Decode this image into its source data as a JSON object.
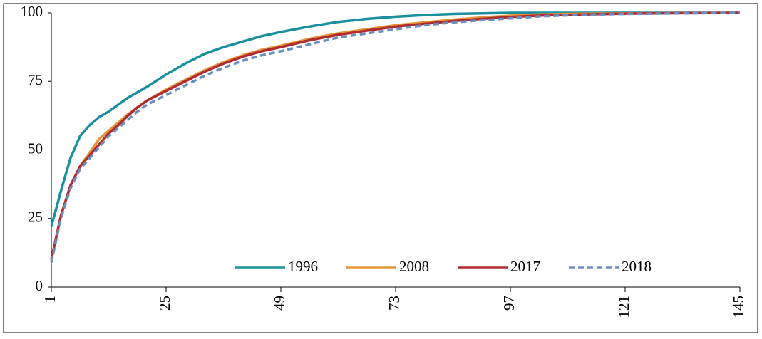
{
  "chart_data": {
    "type": "line",
    "x": [
      1,
      3,
      5,
      7,
      9,
      11,
      13,
      15,
      17,
      19,
      21,
      25,
      29,
      33,
      37,
      41,
      45,
      49,
      55,
      61,
      67,
      73,
      79,
      85,
      91,
      97,
      103,
      109,
      115,
      121,
      133,
      145
    ],
    "series": [
      {
        "name": "1996",
        "color": "#1a8fa0",
        "dashed": false,
        "values": [
          22,
          35,
          47,
          55,
          59,
          62,
          64,
          66.5,
          69,
          71,
          73,
          77.5,
          81.5,
          85,
          87.5,
          89.5,
          91.5,
          93,
          95,
          96.7,
          97.8,
          98.6,
          99.2,
          99.6,
          99.8,
          100,
          100,
          100,
          100,
          100,
          100,
          100
        ]
      },
      {
        "name": "2008",
        "color": "#e5963a",
        "dashed": false,
        "values": [
          10,
          26,
          37,
          44,
          49,
          54,
          57,
          60,
          63,
          65.5,
          68,
          72,
          75.5,
          79,
          82,
          84.5,
          86.5,
          88,
          90.5,
          92.5,
          94,
          95.5,
          96.5,
          97.5,
          98.3,
          99,
          99.4,
          99.6,
          99.7,
          99.8,
          99.9,
          100
        ]
      },
      {
        "name": "2017",
        "color": "#b02a30",
        "dashed": false,
        "values": [
          10,
          26,
          37,
          44,
          48,
          52,
          56,
          59,
          62.5,
          65.5,
          68,
          71.5,
          75,
          78.5,
          81.5,
          84,
          86,
          87.5,
          90,
          92,
          93.5,
          95,
          96,
          97,
          97.8,
          98.5,
          99,
          99.3,
          99.5,
          99.7,
          99.9,
          100
        ]
      },
      {
        "name": "2018",
        "color": "#6a8fbf",
        "dashed": true,
        "values": [
          9,
          25,
          36,
          43,
          47,
          51,
          55,
          58,
          61,
          64,
          66.5,
          70,
          73.5,
          77,
          80,
          82.5,
          84.5,
          86,
          88.5,
          91,
          92.5,
          94,
          95.5,
          96.5,
          97.3,
          98,
          98.7,
          99.1,
          99.4,
          99.6,
          99.8,
          100
        ]
      }
    ],
    "xlim": [
      1,
      145
    ],
    "xticks": [
      1,
      25,
      49,
      73,
      97,
      121,
      145
    ],
    "ylim": [
      0,
      100
    ],
    "yticks": [
      0,
      25,
      50,
      75,
      100
    ],
    "grid": false,
    "legend": "lower right"
  }
}
